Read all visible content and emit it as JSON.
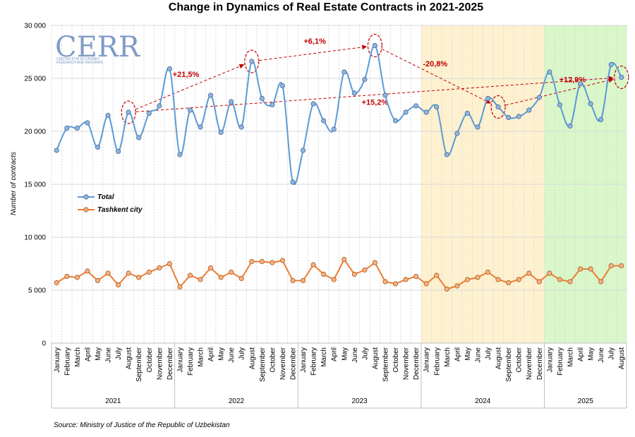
{
  "chart_data": {
    "type": "line",
    "title": "Change in Dynamics of Real Estate Contracts in 2021-2025",
    "ylabel": "Number of contracts",
    "ylim": [
      0,
      30000
    ],
    "yticks": [
      0,
      5000,
      10000,
      15000,
      20000,
      25000,
      30000
    ],
    "ytick_labels": [
      "0",
      "5 000",
      "10 000",
      "15 000",
      "20 000",
      "25 000",
      "30 000"
    ],
    "grid": true,
    "legend_position": "left-middle",
    "years": [
      {
        "label": "2021",
        "months": [
          "January",
          "February",
          "March",
          "April",
          "May",
          "June",
          "July",
          "August",
          "September",
          "October",
          "November",
          "December"
        ]
      },
      {
        "label": "2022",
        "months": [
          "January",
          "February",
          "March",
          "April",
          "May",
          "June",
          "July",
          "August",
          "September",
          "October",
          "November",
          "December"
        ]
      },
      {
        "label": "2023",
        "months": [
          "January",
          "February",
          "March",
          "April",
          "May",
          "June",
          "July",
          "August",
          "September",
          "October",
          "November",
          "December"
        ]
      },
      {
        "label": "2024",
        "months": [
          "January",
          "February",
          "March",
          "April",
          "May",
          "June",
          "July",
          "August",
          "September",
          "October",
          "November",
          "December"
        ]
      },
      {
        "label": "2025",
        "months": [
          "January",
          "February",
          "March",
          "April",
          "May",
          "June",
          "July",
          "August"
        ]
      }
    ],
    "series": [
      {
        "name": "Total",
        "color": "#5b9bd5",
        "values": [
          18200,
          20300,
          20300,
          20800,
          18500,
          21500,
          18100,
          21800,
          19400,
          21700,
          22400,
          25900,
          17800,
          22000,
          20400,
          23400,
          19900,
          22800,
          20400,
          26600,
          23100,
          22500,
          24300,
          15200,
          18200,
          22600,
          21000,
          20200,
          25600,
          23600,
          24900,
          28100,
          23400,
          21000,
          21800,
          22400,
          21800,
          22300,
          17800,
          19800,
          21700,
          20400,
          23100,
          22300,
          21300,
          21400,
          22000,
          23200,
          25600,
          22500,
          20500,
          24500,
          22600,
          21100,
          26300,
          25100
        ]
      },
      {
        "name": "Tashkent city",
        "color": "#ed7d31",
        "values": [
          5700,
          6300,
          6200,
          6800,
          5900,
          6600,
          5500,
          6600,
          6200,
          6700,
          7100,
          7500,
          5300,
          6400,
          6000,
          7100,
          6200,
          6700,
          6100,
          7700,
          7700,
          7600,
          7800,
          5900,
          5900,
          7400,
          6500,
          6000,
          7900,
          6500,
          6900,
          7600,
          5800,
          5600,
          6000,
          6300,
          5600,
          6400,
          5100,
          5400,
          6000,
          6200,
          6700,
          6000,
          5700,
          6000,
          6600,
          5800,
          6600,
          6000,
          5800,
          7000,
          7000,
          5800,
          7300,
          7300
        ]
      }
    ],
    "shaded_regions": [
      {
        "year": "2024",
        "color": "#fdf1d0"
      },
      {
        "year": "2025",
        "color": "#d9f7c9"
      }
    ],
    "annotations": [
      {
        "text": "+21,5%",
        "from_index": 7,
        "to_index": 19
      },
      {
        "text": "+6,1%",
        "from_index": 19,
        "to_index": 31
      },
      {
        "text": "-20,8%",
        "from_index": 31,
        "to_index": 43
      },
      {
        "text": "+12,9%",
        "from_index": 43,
        "to_index": 55
      },
      {
        "text": "+15,2%",
        "from_index": 7,
        "to_index": 55
      }
    ],
    "annotation_color": "#c00000",
    "source": "Source: Ministry of Justice of the Republic of Uzbekistan",
    "logo": {
      "text": "CERR",
      "subtitle": [
        "CENTER FOR ECONOMIC",
        "RESEARCH AND REFORMS"
      ]
    }
  }
}
